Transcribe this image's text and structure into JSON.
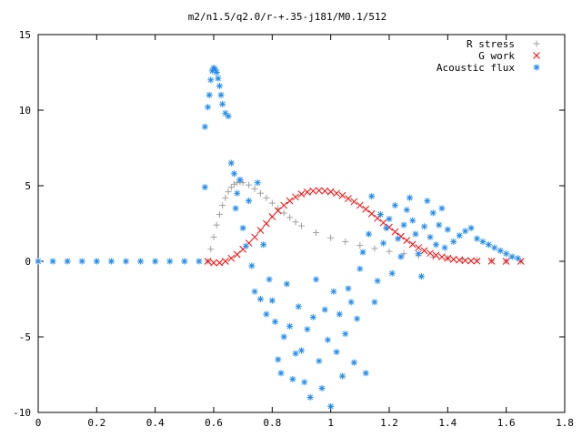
{
  "chart_data": {
    "type": "scatter",
    "title": "m2/n1.5/q2.0/r-+.35-j181/M0.1/512",
    "xlabel": "",
    "ylabel": "",
    "xlim": [
      0,
      1.8
    ],
    "ylim": [
      -10,
      15
    ],
    "xticks": [
      "0",
      "0.2",
      "0.4",
      "0.6",
      "0.8",
      "1",
      "1.2",
      "1.4",
      "1.6",
      "1.8"
    ],
    "yticks": [
      "15",
      "10",
      "5",
      "0",
      "-5",
      "-10"
    ],
    "legend_position": "top-right",
    "grid": false,
    "series": [
      {
        "name": "R stress",
        "marker": "+",
        "color": "#a0a0a0",
        "x": [
          0,
          0.1,
          0.2,
          0.3,
          0.4,
          0.5,
          0.58,
          0.59,
          0.6,
          0.61,
          0.62,
          0.63,
          0.64,
          0.65,
          0.66,
          0.67,
          0.68,
          0.69,
          0.7,
          0.72,
          0.74,
          0.76,
          0.78,
          0.8,
          0.82,
          0.84,
          0.86,
          0.88,
          0.9,
          0.95,
          1.0,
          1.05,
          1.1,
          1.15,
          1.2,
          1.25,
          1.3,
          1.35,
          1.4,
          1.45,
          1.5,
          1.55,
          1.6,
          1.65
        ],
        "y": [
          0,
          0,
          0,
          0,
          0,
          0,
          0.0,
          0.8,
          1.6,
          2.4,
          3.1,
          3.7,
          4.2,
          4.6,
          4.9,
          5.1,
          5.2,
          5.25,
          5.2,
          5.05,
          4.8,
          4.5,
          4.2,
          3.85,
          3.5,
          3.2,
          2.9,
          2.6,
          2.35,
          1.9,
          1.55,
          1.3,
          1.05,
          0.85,
          0.65,
          0.5,
          0.38,
          0.28,
          0.2,
          0.13,
          0.08,
          0.04,
          0.02,
          0.0
        ]
      },
      {
        "name": "G work",
        "marker": "x",
        "color": "#ff0000",
        "x": [
          0.58,
          0.6,
          0.62,
          0.64,
          0.66,
          0.68,
          0.7,
          0.72,
          0.74,
          0.76,
          0.78,
          0.8,
          0.82,
          0.84,
          0.86,
          0.88,
          0.9,
          0.92,
          0.94,
          0.96,
          0.98,
          1.0,
          1.02,
          1.04,
          1.06,
          1.08,
          1.1,
          1.12,
          1.14,
          1.16,
          1.18,
          1.2,
          1.22,
          1.24,
          1.26,
          1.28,
          1.3,
          1.32,
          1.34,
          1.36,
          1.38,
          1.4,
          1.42,
          1.44,
          1.46,
          1.48,
          1.5,
          1.55,
          1.6,
          1.65
        ],
        "y": [
          0.0,
          -0.1,
          -0.1,
          0.0,
          0.2,
          0.45,
          0.8,
          1.2,
          1.6,
          2.05,
          2.5,
          2.95,
          3.35,
          3.7,
          4.0,
          4.25,
          4.45,
          4.58,
          4.65,
          4.68,
          4.65,
          4.6,
          4.5,
          4.35,
          4.15,
          3.95,
          3.7,
          3.45,
          3.15,
          2.85,
          2.55,
          2.25,
          1.95,
          1.65,
          1.38,
          1.12,
          0.9,
          0.7,
          0.53,
          0.4,
          0.29,
          0.2,
          0.13,
          0.08,
          0.05,
          0.03,
          0.02,
          0.01,
          0.0,
          0.0
        ]
      },
      {
        "name": "Acoustic flux",
        "marker": "*",
        "color": "#1e8cf0",
        "x": [
          0,
          0.05,
          0.1,
          0.15,
          0.2,
          0.25,
          0.3,
          0.35,
          0.4,
          0.45,
          0.5,
          0.55,
          0.57,
          0.57,
          0.58,
          0.585,
          0.59,
          0.595,
          0.6,
          0.605,
          0.61,
          0.615,
          0.62,
          0.625,
          0.63,
          0.64,
          0.65,
          0.66,
          0.67,
          0.675,
          0.68,
          0.69,
          0.7,
          0.71,
          0.72,
          0.73,
          0.74,
          0.75,
          0.76,
          0.77,
          0.78,
          0.79,
          0.8,
          0.81,
          0.82,
          0.83,
          0.84,
          0.85,
          0.86,
          0.87,
          0.88,
          0.89,
          0.9,
          0.91,
          0.92,
          0.93,
          0.94,
          0.95,
          0.96,
          0.97,
          0.98,
          0.99,
          1.0,
          1.01,
          1.02,
          1.03,
          1.04,
          1.05,
          1.06,
          1.07,
          1.08,
          1.09,
          1.1,
          1.11,
          1.12,
          1.13,
          1.14,
          1.15,
          1.16,
          1.17,
          1.18,
          1.19,
          1.2,
          1.21,
          1.22,
          1.23,
          1.24,
          1.25,
          1.26,
          1.27,
          1.28,
          1.29,
          1.3,
          1.31,
          1.32,
          1.33,
          1.34,
          1.35,
          1.36,
          1.37,
          1.38,
          1.39,
          1.4,
          1.42,
          1.44,
          1.46,
          1.48,
          1.5,
          1.52,
          1.54,
          1.56,
          1.58,
          1.6,
          1.62,
          1.64
        ],
        "y": [
          0,
          0,
          0,
          0,
          0,
          0,
          0,
          0,
          0,
          0,
          0,
          0,
          4.9,
          8.9,
          10.2,
          11.0,
          12.0,
          12.6,
          12.8,
          12.7,
          12.5,
          12.1,
          11.6,
          11.0,
          10.4,
          9.8,
          9.6,
          6.5,
          5.8,
          3.5,
          4.5,
          5.4,
          2.2,
          1.0,
          4.0,
          -0.3,
          -2.0,
          5.2,
          -2.5,
          1.1,
          -3.5,
          -1.2,
          -2.6,
          -4.0,
          -6.5,
          -7.4,
          -5.0,
          -1.5,
          -4.3,
          -7.8,
          -6.1,
          -3.0,
          -5.9,
          -8.0,
          -4.5,
          -9.0,
          -3.7,
          -1.2,
          -6.6,
          -8.4,
          -3.2,
          -5.2,
          -9.6,
          -2.0,
          -6.0,
          -3.5,
          -7.6,
          -4.8,
          -1.8,
          -2.7,
          -6.7,
          -3.8,
          -0.5,
          0.6,
          -7.4,
          1.8,
          4.3,
          -2.7,
          -1.3,
          3.1,
          1.2,
          2.2,
          2.8,
          -0.8,
          3.7,
          1.5,
          0.3,
          2.4,
          3.4,
          4.2,
          2.7,
          1.8,
          0.5,
          -1.0,
          2.3,
          4.0,
          1.6,
          3.2,
          1.1,
          2.4,
          3.5,
          0.9,
          2.1,
          1.3,
          1.7,
          2.0,
          2.2,
          1.5,
          1.3,
          1.1,
          0.9,
          0.7,
          0.5,
          0.3,
          0.2
        ]
      }
    ]
  }
}
